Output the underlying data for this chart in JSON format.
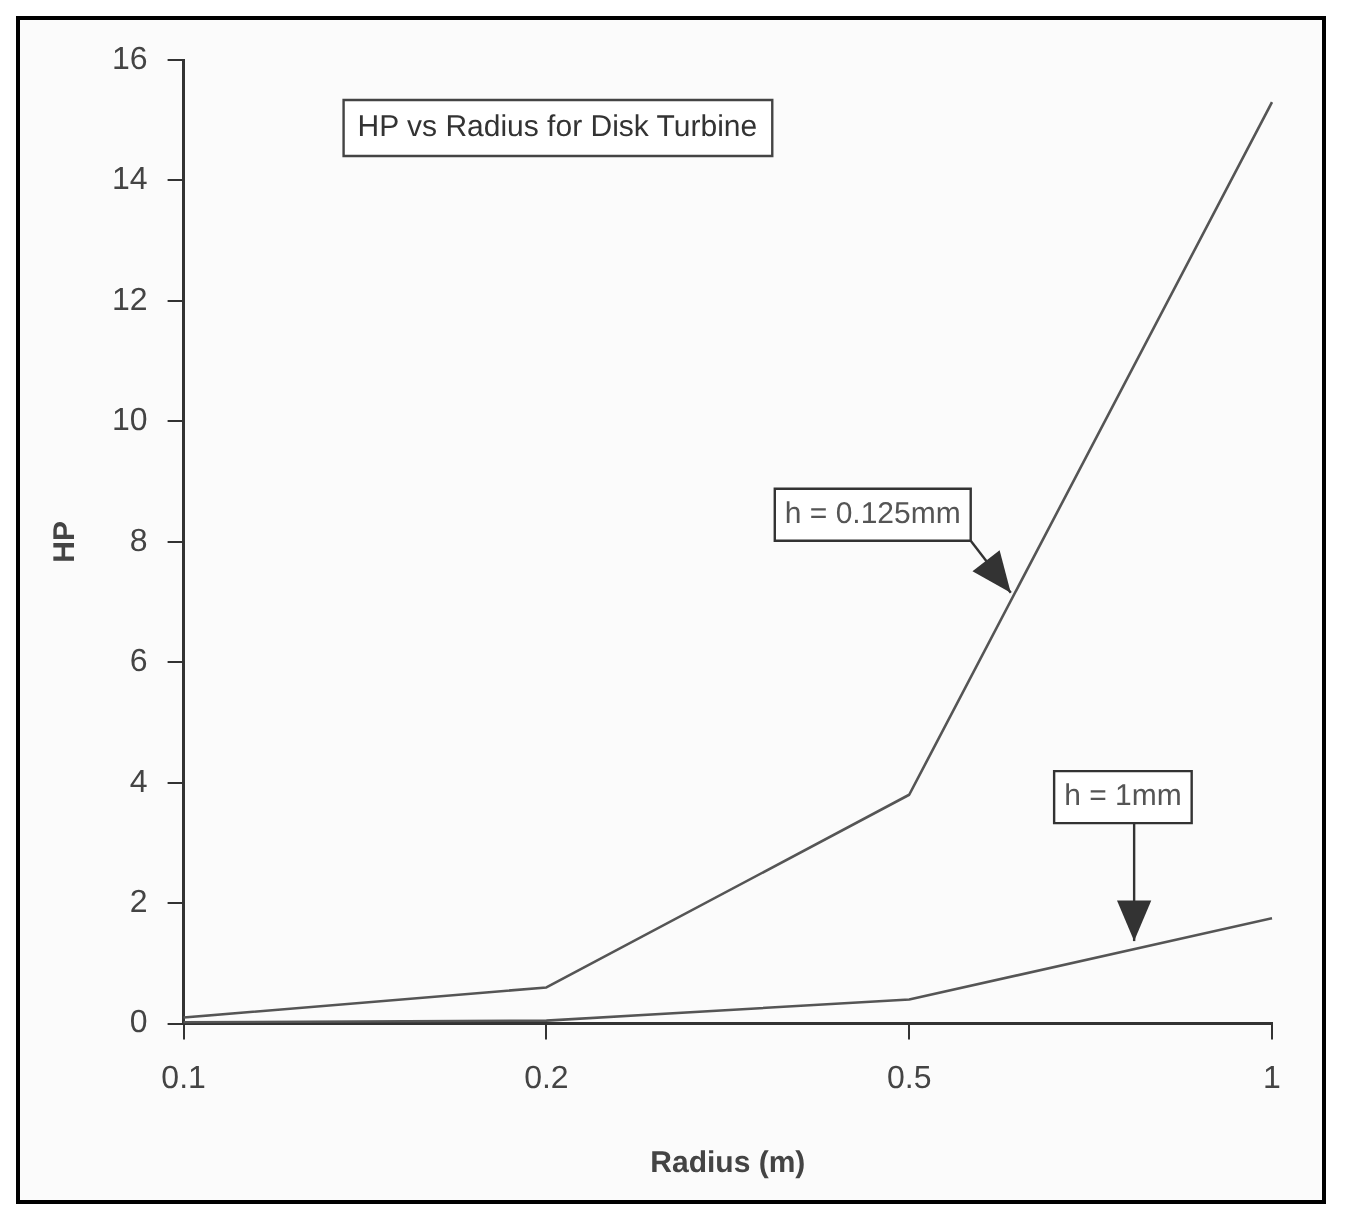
{
  "chart_data": {
    "type": "line",
    "title": "HP vs Radius for Disk Turbine",
    "xlabel": "Radius (m)",
    "ylabel": "HP",
    "categories": [
      "0.1",
      "0.2",
      "0.5",
      "1"
    ],
    "series": [
      {
        "name": "h = 0.125mm",
        "color": "#555555",
        "values": [
          0.1,
          0.6,
          3.8,
          15.3
        ]
      },
      {
        "name": "h = 1mm",
        "color": "#555555",
        "values": [
          0.02,
          0.05,
          0.4,
          1.75
        ]
      }
    ],
    "ylim": [
      0,
      16
    ],
    "yticks": [
      0,
      2,
      4,
      6,
      8,
      10,
      12,
      14,
      16
    ],
    "grid": false,
    "legend": false,
    "marker": "none",
    "line_style": "solid"
  }
}
